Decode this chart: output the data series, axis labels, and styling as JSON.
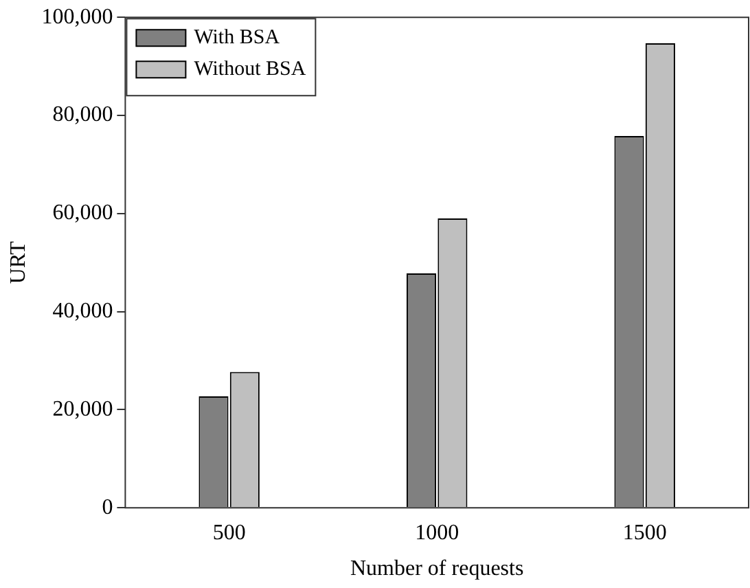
{
  "chart_data": {
    "type": "bar",
    "xlabel": "Number of requests",
    "ylabel": "URT",
    "categories": [
      "500",
      "1000",
      "1500"
    ],
    "series": [
      {
        "name": "With BSA",
        "color": "#808080",
        "values": [
          22700,
          47800,
          75800
        ]
      },
      {
        "name": "Without BSA",
        "color": "#bfbfbf",
        "values": [
          27700,
          59000,
          94700
        ]
      }
    ],
    "ylim": [
      0,
      100000
    ],
    "yticks": [
      0,
      {
        "value": 20000,
        "label": "20,000"
      },
      {
        "value": 40000,
        "label": "40,000"
      },
      {
        "value": 60000,
        "label": "60,000"
      },
      {
        "value": 80000,
        "label": "80,000"
      },
      {
        "value": 100000,
        "label": "100,000"
      }
    ],
    "grid": false,
    "legend": "top left"
  }
}
